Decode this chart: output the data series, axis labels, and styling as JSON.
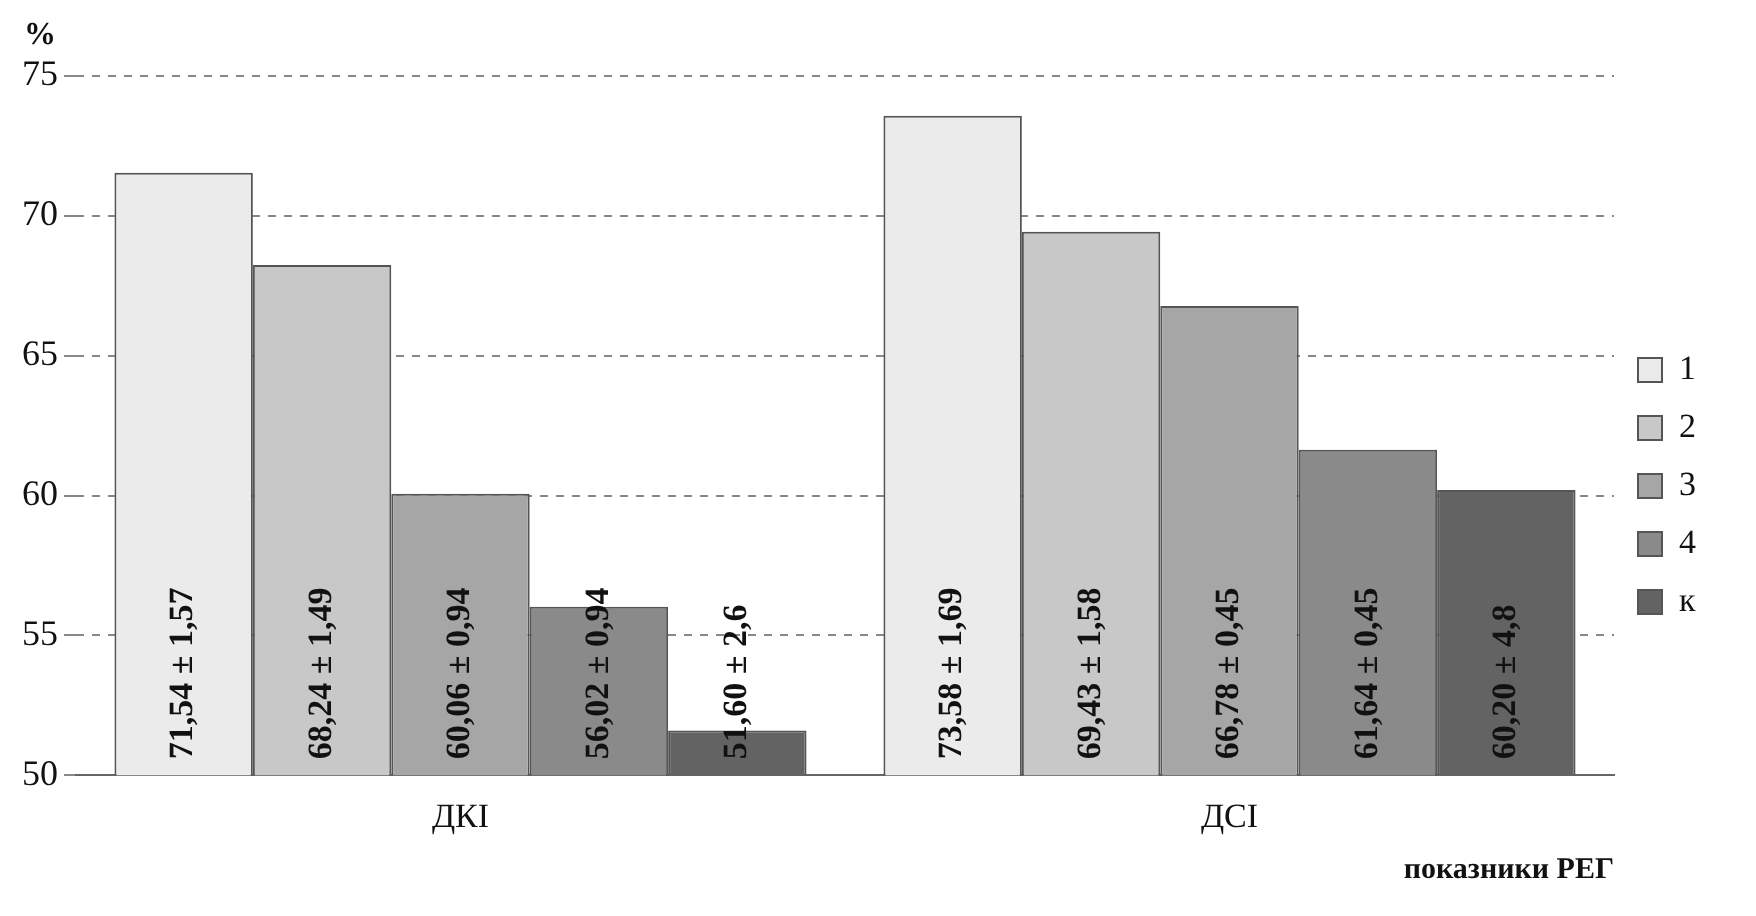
{
  "chart_data": {
    "type": "bar",
    "ylabel": "%",
    "xlabel": "показники РЕГ",
    "categories": [
      "ДКІ",
      "ДСІ"
    ],
    "series": [
      {
        "name": "1",
        "color": "#ebebeb",
        "values": [
          71.54,
          73.58
        ],
        "value_labels": [
          "71,54 ± 1,57",
          "73,58 ± 1,69"
        ]
      },
      {
        "name": "2",
        "color": "#c8c8c8",
        "values": [
          68.24,
          69.43
        ],
        "value_labels": [
          "68,24 ± 1,49",
          "69,43 ± 1,58"
        ]
      },
      {
        "name": "3",
        "color": "#a6a6a6",
        "values": [
          60.06,
          66.78
        ],
        "value_labels": [
          "60,06 ± 0,94",
          "66,78 ± 0,45"
        ]
      },
      {
        "name": "4",
        "color": "#8a8a8a",
        "values": [
          56.02,
          61.64
        ],
        "value_labels": [
          "56,02 ± 0,94",
          "61,64 ± 0,45"
        ]
      },
      {
        "name": "к",
        "color": "#636363",
        "values": [
          51.6,
          60.2
        ],
        "value_labels": [
          "51,60 ± 2,6",
          "60,20 ± 4,8"
        ]
      }
    ],
    "ylim": [
      50,
      75
    ],
    "yticks": [
      50,
      55,
      60,
      65,
      70,
      75
    ],
    "grid": "y",
    "legend": "right"
  }
}
